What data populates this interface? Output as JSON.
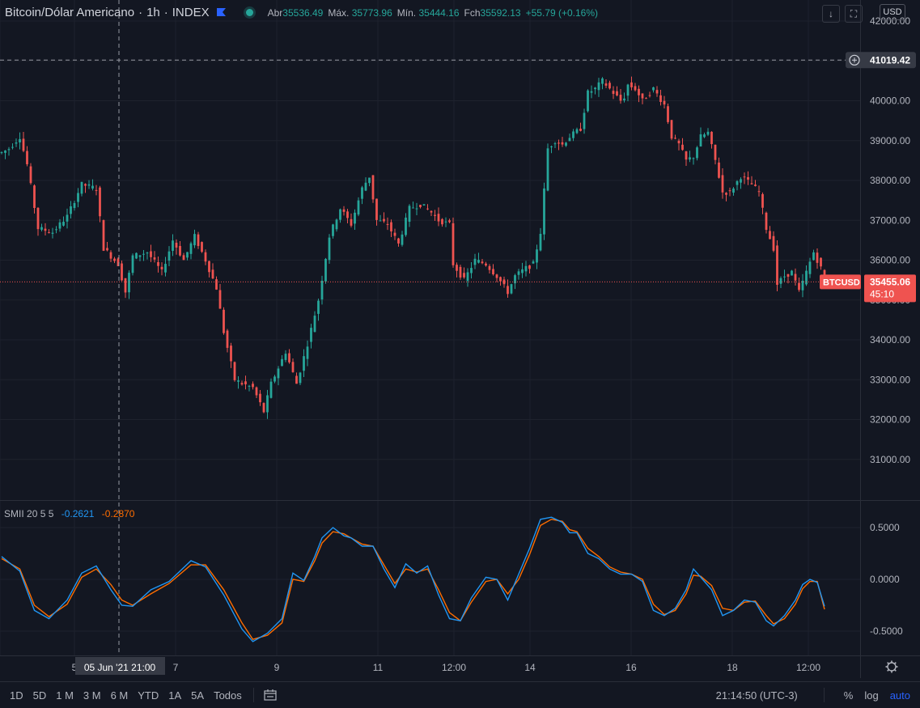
{
  "legend": {
    "symbol": "Bitcoin/Dólar Americano",
    "interval": "1h",
    "exchange": "INDEX",
    "open_label": "Abr",
    "open": "35536.49",
    "high_label": "Máx.",
    "high": "35773.96",
    "low_label": "Mín.",
    "low": "35444.16",
    "close_label": "Fch",
    "close": "35592.13",
    "change": "+55.79 (+0.16%)",
    "flag_icon": "flag-icon",
    "status_icon": "market-status-icon"
  },
  "top_buttons": {
    "download_icon": "↓",
    "fullscreen_icon": "⛶"
  },
  "currency": "USD",
  "price_axis": {
    "ticks": [
      "42000.00",
      "41000.00",
      "40000.00",
      "39000.00",
      "38000.00",
      "37000.00",
      "36000.00",
      "35000.00",
      "34000.00",
      "33000.00",
      "32000.00",
      "31000.00"
    ],
    "crosshair_label": "41019.42",
    "last_symbol_label": "BTCUSD",
    "last_price_label": "35455.06",
    "countdown": "45:10"
  },
  "indicator": {
    "name": "SMII",
    "params": "20 5 5",
    "value_k": "-0.2621",
    "value_d": "-0.2870",
    "ticks": [
      "0.5000",
      "0.0000",
      "-0.5000"
    ]
  },
  "time_axis": {
    "labels": [
      "5",
      "7",
      "9",
      "11",
      "12:00",
      "14",
      "16",
      "18",
      "12:00"
    ],
    "crosshair_label": "05 Jun '21   21:00"
  },
  "ranges": [
    "1D",
    "5D",
    "1 M",
    "3 M",
    "6 M",
    "YTD",
    "1A",
    "5A",
    "Todos"
  ],
  "bottom_right": {
    "time": "21:14:50 (UTC-3)",
    "percent": "%",
    "log": "log",
    "auto": "auto"
  },
  "colors": {
    "up": "#26a69a",
    "down": "#ef5350",
    "k_line": "#2196f3",
    "d_line": "#ff6d00",
    "background": "#131722"
  },
  "chart_data": {
    "type": "candlestick",
    "title": "Bitcoin/Dólar Americano · 1h · INDEX",
    "ylim": [
      30000,
      42000
    ],
    "last_price": 35455.06,
    "crosshair_price": 41019.42,
    "x_labels": [
      "5",
      "7",
      "9",
      "11",
      "12:00",
      "14",
      "16",
      "18",
      "12:00"
    ],
    "close_path": [
      [
        0,
        38700
      ],
      [
        2,
        38800
      ],
      [
        5,
        39100
      ],
      [
        7,
        38400
      ],
      [
        10,
        36800
      ],
      [
        14,
        36700
      ],
      [
        18,
        37100
      ],
      [
        22,
        37900
      ],
      [
        26,
        37800
      ],
      [
        28,
        36300
      ],
      [
        32,
        35900
      ],
      [
        34,
        35200
      ],
      [
        36,
        36100
      ],
      [
        40,
        36200
      ],
      [
        44,
        35700
      ],
      [
        47,
        36500
      ],
      [
        50,
        36000
      ],
      [
        53,
        36600
      ],
      [
        56,
        36000
      ],
      [
        59,
        35300
      ],
      [
        61,
        34200
      ],
      [
        64,
        33000
      ],
      [
        66,
        32900
      ],
      [
        69,
        32800
      ],
      [
        72,
        32200
      ],
      [
        74,
        32900
      ],
      [
        78,
        33700
      ],
      [
        81,
        32900
      ],
      [
        84,
        33900
      ],
      [
        87,
        35000
      ],
      [
        90,
        36600
      ],
      [
        93,
        37300
      ],
      [
        96,
        36900
      ],
      [
        99,
        37800
      ],
      [
        101,
        38100
      ],
      [
        103,
        37000
      ],
      [
        106,
        36900
      ],
      [
        109,
        36400
      ],
      [
        112,
        37300
      ],
      [
        115,
        37400
      ],
      [
        118,
        37200
      ],
      [
        120,
        37000
      ],
      [
        123,
        36900
      ],
      [
        124,
        35900
      ],
      [
        127,
        35500
      ],
      [
        130,
        36000
      ],
      [
        133,
        35900
      ],
      [
        136,
        35600
      ],
      [
        139,
        35200
      ],
      [
        141,
        35600
      ],
      [
        144,
        35800
      ],
      [
        146,
        35900
      ],
      [
        148,
        36700
      ],
      [
        150,
        38800
      ],
      [
        152,
        39000
      ],
      [
        154,
        38900
      ],
      [
        156,
        39100
      ],
      [
        159,
        39300
      ],
      [
        161,
        40200
      ],
      [
        163,
        40300
      ],
      [
        165,
        40500
      ],
      [
        168,
        40200
      ],
      [
        170,
        40000
      ],
      [
        171,
        40100
      ],
      [
        172,
        40400
      ],
      [
        174,
        40300
      ],
      [
        176,
        40000
      ],
      [
        179,
        40300
      ],
      [
        182,
        39900
      ],
      [
        184,
        39100
      ],
      [
        186,
        38900
      ],
      [
        188,
        38500
      ],
      [
        190,
        38600
      ],
      [
        192,
        39100
      ],
      [
        194,
        39200
      ],
      [
        196,
        38500
      ],
      [
        198,
        37700
      ],
      [
        200,
        37700
      ],
      [
        203,
        38100
      ],
      [
        206,
        37900
      ],
      [
        208,
        37700
      ],
      [
        210,
        36800
      ],
      [
        212,
        36300
      ],
      [
        213,
        35400
      ],
      [
        215,
        35600
      ],
      [
        217,
        35700
      ],
      [
        219,
        35200
      ],
      [
        221,
        35700
      ],
      [
        223,
        36200
      ],
      [
        225,
        35800
      ],
      [
        226,
        35455
      ]
    ],
    "candle_count": 227,
    "indicator": {
      "name": "SMII 20 5 5",
      "ylim": [
        -0.75,
        0.75
      ],
      "k_path": [
        [
          0,
          0.22
        ],
        [
          5,
          0.08
        ],
        [
          9,
          -0.3
        ],
        [
          13,
          -0.38
        ],
        [
          18,
          -0.2
        ],
        [
          22,
          0.06
        ],
        [
          26,
          0.13
        ],
        [
          30,
          -0.1
        ],
        [
          33,
          -0.25
        ],
        [
          36,
          -0.26
        ],
        [
          41,
          -0.1
        ],
        [
          46,
          -0.02
        ],
        [
          52,
          0.18
        ],
        [
          56,
          0.12
        ],
        [
          61,
          -0.15
        ],
        [
          66,
          -0.48
        ],
        [
          69,
          -0.6
        ],
        [
          73,
          -0.52
        ],
        [
          77,
          -0.38
        ],
        [
          80,
          0.06
        ],
        [
          83,
          -0.01
        ],
        [
          86,
          0.22
        ],
        [
          88,
          0.4
        ],
        [
          91,
          0.5
        ],
        [
          94,
          0.42
        ],
        [
          96,
          0.4
        ],
        [
          99,
          0.32
        ],
        [
          102,
          0.32
        ],
        [
          105,
          0.1
        ],
        [
          108,
          -0.08
        ],
        [
          111,
          0.15
        ],
        [
          114,
          0.06
        ],
        [
          117,
          0.13
        ],
        [
          120,
          -0.15
        ],
        [
          123,
          -0.38
        ],
        [
          126,
          -0.4
        ],
        [
          129,
          -0.18
        ],
        [
          133,
          0.02
        ],
        [
          136,
          0.0
        ],
        [
          139,
          -0.2
        ],
        [
          142,
          0.05
        ],
        [
          145,
          0.3
        ],
        [
          148,
          0.58
        ],
        [
          151,
          0.6
        ],
        [
          154,
          0.55
        ],
        [
          156,
          0.45
        ],
        [
          158,
          0.45
        ],
        [
          161,
          0.25
        ],
        [
          164,
          0.2
        ],
        [
          167,
          0.1
        ],
        [
          170,
          0.05
        ],
        [
          173,
          0.05
        ],
        [
          176,
          -0.02
        ],
        [
          179,
          -0.3
        ],
        [
          182,
          -0.35
        ],
        [
          185,
          -0.28
        ],
        [
          188,
          -0.1
        ],
        [
          190,
          0.1
        ],
        [
          192,
          0.02
        ],
        [
          195,
          -0.1
        ],
        [
          198,
          -0.35
        ],
        [
          201,
          -0.3
        ],
        [
          204,
          -0.2
        ],
        [
          207,
          -0.22
        ],
        [
          210,
          -0.4
        ],
        [
          212,
          -0.45
        ],
        [
          215,
          -0.35
        ],
        [
          218,
          -0.2
        ],
        [
          220,
          -0.05
        ],
        [
          222,
          0.0
        ],
        [
          224,
          -0.03
        ],
        [
          226,
          -0.26
        ]
      ],
      "d_path": [
        [
          0,
          0.2
        ],
        [
          5,
          0.1
        ],
        [
          9,
          -0.25
        ],
        [
          13,
          -0.36
        ],
        [
          18,
          -0.24
        ],
        [
          22,
          0.02
        ],
        [
          26,
          0.1
        ],
        [
          30,
          -0.05
        ],
        [
          33,
          -0.2
        ],
        [
          36,
          -0.25
        ],
        [
          41,
          -0.14
        ],
        [
          46,
          -0.04
        ],
        [
          52,
          0.14
        ],
        [
          56,
          0.14
        ],
        [
          61,
          -0.1
        ],
        [
          66,
          -0.42
        ],
        [
          69,
          -0.58
        ],
        [
          73,
          -0.54
        ],
        [
          77,
          -0.42
        ],
        [
          80,
          0.0
        ],
        [
          83,
          -0.02
        ],
        [
          86,
          0.18
        ],
        [
          88,
          0.35
        ],
        [
          91,
          0.46
        ],
        [
          94,
          0.44
        ],
        [
          96,
          0.4
        ],
        [
          99,
          0.34
        ],
        [
          102,
          0.32
        ],
        [
          105,
          0.14
        ],
        [
          108,
          -0.04
        ],
        [
          111,
          0.1
        ],
        [
          114,
          0.07
        ],
        [
          117,
          0.1
        ],
        [
          120,
          -0.1
        ],
        [
          123,
          -0.32
        ],
        [
          126,
          -0.4
        ],
        [
          129,
          -0.22
        ],
        [
          133,
          -0.02
        ],
        [
          136,
          0.0
        ],
        [
          139,
          -0.14
        ],
        [
          142,
          0.0
        ],
        [
          145,
          0.24
        ],
        [
          148,
          0.52
        ],
        [
          151,
          0.58
        ],
        [
          154,
          0.56
        ],
        [
          156,
          0.48
        ],
        [
          158,
          0.46
        ],
        [
          161,
          0.3
        ],
        [
          164,
          0.22
        ],
        [
          167,
          0.12
        ],
        [
          170,
          0.07
        ],
        [
          173,
          0.05
        ],
        [
          176,
          0.0
        ],
        [
          179,
          -0.24
        ],
        [
          182,
          -0.34
        ],
        [
          185,
          -0.3
        ],
        [
          188,
          -0.14
        ],
        [
          190,
          0.04
        ],
        [
          192,
          0.03
        ],
        [
          195,
          -0.06
        ],
        [
          198,
          -0.28
        ],
        [
          201,
          -0.3
        ],
        [
          204,
          -0.22
        ],
        [
          207,
          -0.21
        ],
        [
          210,
          -0.35
        ],
        [
          212,
          -0.43
        ],
        [
          215,
          -0.38
        ],
        [
          218,
          -0.24
        ],
        [
          220,
          -0.09
        ],
        [
          222,
          -0.02
        ],
        [
          224,
          -0.02
        ],
        [
          226,
          -0.29
        ]
      ]
    }
  }
}
